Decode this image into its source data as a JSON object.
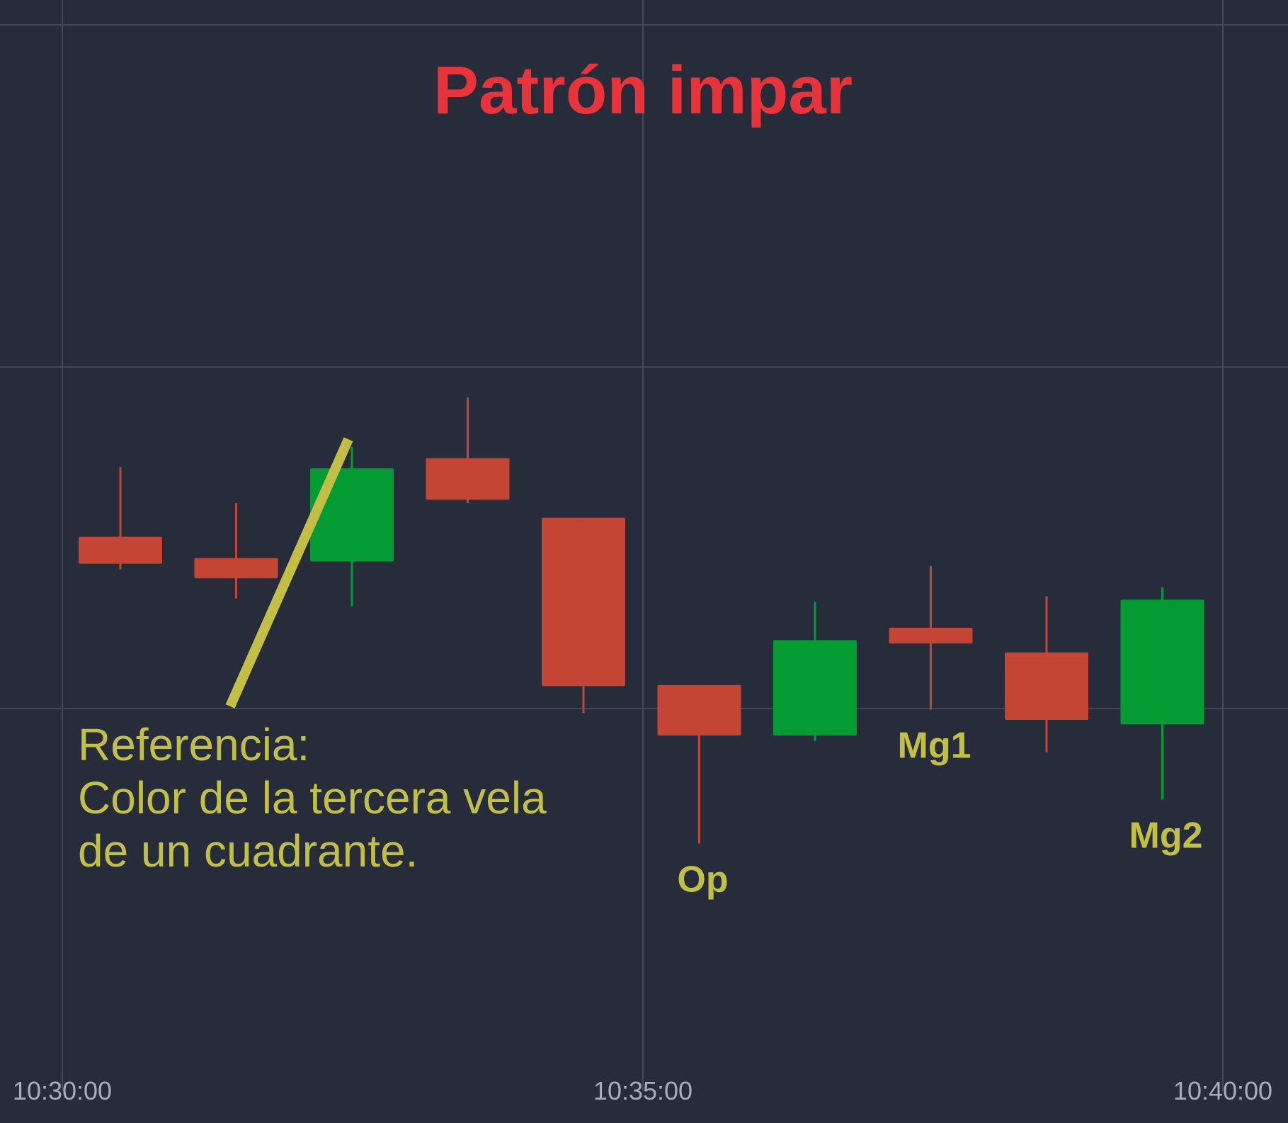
{
  "chart_data": {
    "type": "candlestick",
    "title": "Patrón impar",
    "x_tick_labels": [
      "10:30:00",
      "10:35:00",
      "10:40:00"
    ],
    "candles": [
      {
        "open": 52.2,
        "high": 58.4,
        "low": 49.3,
        "close": 49.8,
        "color": "red"
      },
      {
        "open": 50.3,
        "high": 55.2,
        "low": 46.7,
        "close": 48.5,
        "color": "red"
      },
      {
        "open": 50.0,
        "high": 60.2,
        "low": 46.0,
        "close": 58.3,
        "color": "green"
      },
      {
        "open": 59.2,
        "high": 64.6,
        "low": 55.2,
        "close": 55.5,
        "color": "red"
      },
      {
        "open": 53.9,
        "high": 53.9,
        "low": 36.5,
        "close": 38.9,
        "color": "red"
      },
      {
        "open": 39.0,
        "high": 39.0,
        "low": 24.9,
        "close": 34.5,
        "color": "red"
      },
      {
        "open": 34.5,
        "high": 46.4,
        "low": 34.0,
        "close": 43.0,
        "color": "green"
      },
      {
        "open": 44.1,
        "high": 49.6,
        "low": 36.8,
        "close": 42.7,
        "color": "red"
      },
      {
        "open": 41.9,
        "high": 46.9,
        "low": 33.0,
        "close": 35.9,
        "color": "red"
      },
      {
        "open": 35.5,
        "high": 47.7,
        "low": 28.8,
        "close": 46.6,
        "color": "green"
      }
    ],
    "annotations": [
      {
        "label": "Op",
        "candle_index": 5
      },
      {
        "label": "Mg1",
        "candle_index": 7
      },
      {
        "label": "Mg2",
        "candle_index": 9
      }
    ],
    "reference_note": {
      "lines": [
        "Referencia:",
        "Color de la tercera vela",
        "de un cuadrante."
      ],
      "points_to_candle_index": 2
    },
    "y_range": [
      0,
      100
    ],
    "grid": true,
    "colors": {
      "background": "#272c3b",
      "grid": "#424857",
      "up": "#029c33",
      "down": "#c44534",
      "title": "#e8333b",
      "annotation": "#c2bf45",
      "axis_text": "#a8adb8"
    }
  }
}
